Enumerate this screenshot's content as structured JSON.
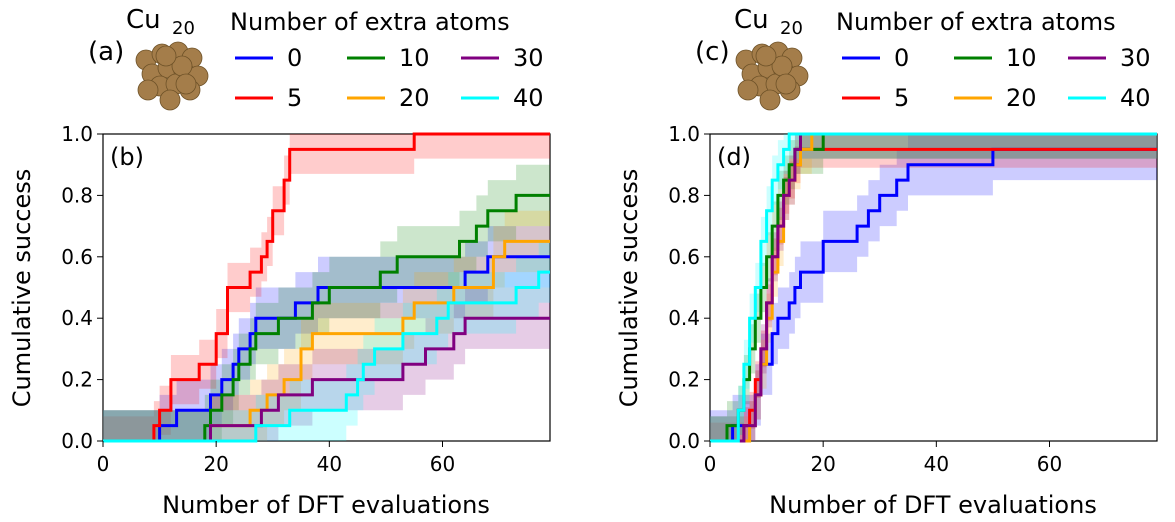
{
  "chart_data": [
    {
      "panel": "(a)",
      "type": "image",
      "cluster_label": "Cu",
      "cluster_subscript": "20",
      "color": "#a47d4a"
    },
    {
      "panel": "(b)",
      "type": "line",
      "step": true,
      "xlabel": "Number of DFT evaluations",
      "ylabel": "Cumulative success",
      "xlim": [
        0,
        79
      ],
      "ylim": [
        0,
        1.0
      ],
      "xticks": [
        "0",
        "20",
        "40",
        "60"
      ],
      "yticks": [
        "0.0",
        "0.2",
        "0.4",
        "0.6",
        "0.8",
        "1.0"
      ],
      "legend_title": "Number of extra atoms",
      "legend_location": "top",
      "series": [
        {
          "name": "0",
          "color": "#0000ff",
          "x": [
            0,
            10,
            13,
            17,
            19,
            21,
            23,
            24,
            26,
            27,
            31,
            34,
            38,
            40,
            43,
            48,
            53,
            62,
            64,
            68,
            79
          ],
          "y": [
            0,
            0.05,
            0.1,
            0.1,
            0.15,
            0.2,
            0.25,
            0.3,
            0.35,
            0.4,
            0.4,
            0.45,
            0.5,
            0.5,
            0.5,
            0.5,
            0.5,
            0.5,
            0.55,
            0.6,
            0.6
          ],
          "band": 0.1
        },
        {
          "name": "5",
          "color": "#ff0000",
          "x": [
            0,
            9,
            10,
            12,
            17,
            20,
            22,
            26,
            28,
            29,
            30,
            32,
            33,
            35,
            40,
            55,
            79
          ],
          "y": [
            0,
            0.05,
            0.1,
            0.2,
            0.25,
            0.35,
            0.5,
            0.55,
            0.6,
            0.65,
            0.75,
            0.85,
            0.95,
            0.95,
            0.95,
            1.0,
            1.0
          ],
          "band": 0.08
        },
        {
          "name": "10",
          "color": "#008000",
          "x": [
            0,
            18,
            19,
            21,
            23,
            24,
            26,
            27,
            31,
            35,
            37,
            40,
            43,
            44,
            49,
            52,
            56,
            59,
            62,
            63,
            66,
            68,
            70,
            73,
            75,
            79
          ],
          "y": [
            0,
            0.05,
            0.1,
            0.15,
            0.2,
            0.25,
            0.3,
            0.35,
            0.4,
            0.4,
            0.45,
            0.5,
            0.5,
            0.5,
            0.55,
            0.6,
            0.6,
            0.6,
            0.6,
            0.65,
            0.7,
            0.75,
            0.75,
            0.8,
            0.8,
            0.8
          ],
          "band": 0.1
        },
        {
          "name": "20",
          "color": "#ffa500",
          "x": [
            0,
            19,
            20,
            23,
            26,
            29,
            32,
            35,
            37,
            40,
            42,
            47,
            50,
            53,
            55,
            62,
            69,
            71,
            76,
            79
          ],
          "y": [
            0,
            0.05,
            0.05,
            0.05,
            0.1,
            0.15,
            0.2,
            0.3,
            0.35,
            0.35,
            0.35,
            0.35,
            0.35,
            0.4,
            0.45,
            0.5,
            0.6,
            0.65,
            0.65,
            0.65
          ],
          "band": 0.1
        },
        {
          "name": "30",
          "color": "#800080",
          "x": [
            0,
            19,
            28,
            31,
            37,
            41,
            45,
            47,
            49,
            53,
            57,
            62,
            64,
            79
          ],
          "y": [
            0,
            0.05,
            0.1,
            0.15,
            0.2,
            0.2,
            0.2,
            0.2,
            0.2,
            0.25,
            0.3,
            0.35,
            0.4,
            0.4
          ],
          "band": 0.1
        },
        {
          "name": "40",
          "color": "#00ffff",
          "x": [
            0,
            27,
            30,
            33,
            36,
            40,
            43,
            45,
            46,
            48,
            53,
            58,
            59,
            61,
            64,
            66,
            69,
            71,
            73,
            77,
            79
          ],
          "y": [
            0,
            0.05,
            0.05,
            0.1,
            0.1,
            0.1,
            0.15,
            0.2,
            0.25,
            0.3,
            0.35,
            0.35,
            0.4,
            0.45,
            0.45,
            0.45,
            0.45,
            0.45,
            0.5,
            0.55,
            0.55
          ],
          "band": 0.1
        }
      ]
    },
    {
      "panel": "(c)",
      "type": "image",
      "cluster_label": "Cu",
      "cluster_subscript": "20",
      "color": "#a47d4a"
    },
    {
      "panel": "(d)",
      "type": "line",
      "step": true,
      "xlabel": "Number of DFT evaluations",
      "ylabel": "Cumulative success",
      "xlim": [
        0,
        79
      ],
      "ylim": [
        0,
        1.0
      ],
      "xticks": [
        "0",
        "20",
        "40",
        "60"
      ],
      "yticks": [
        "0.0",
        "0.2",
        "0.4",
        "0.6",
        "0.8",
        "1.0"
      ],
      "legend_title": "Number of extra atoms",
      "legend_location": "top",
      "series": [
        {
          "name": "0",
          "color": "#0000ff",
          "x": [
            0,
            4,
            8,
            9,
            11,
            12,
            14,
            15,
            16,
            20,
            26,
            28,
            30,
            33,
            35,
            50,
            79
          ],
          "y": [
            0,
            0.05,
            0.15,
            0.25,
            0.35,
            0.4,
            0.45,
            0.5,
            0.55,
            0.65,
            0.7,
            0.75,
            0.8,
            0.85,
            0.9,
            0.95,
            0.95
          ],
          "band": 0.1
        },
        {
          "name": "5",
          "color": "#ff0000",
          "x": [
            0,
            6,
            7,
            8,
            9,
            10,
            11,
            12,
            13,
            14,
            15,
            16,
            17,
            79
          ],
          "y": [
            0,
            0.05,
            0.1,
            0.2,
            0.3,
            0.45,
            0.6,
            0.7,
            0.8,
            0.85,
            0.9,
            0.95,
            0.95,
            0.95
          ],
          "band": 0.06
        },
        {
          "name": "10",
          "color": "#008000",
          "x": [
            0,
            3,
            5,
            6,
            7,
            8,
            9,
            10,
            11,
            12,
            13,
            14,
            15,
            17,
            20,
            79
          ],
          "y": [
            0,
            0.05,
            0.1,
            0.2,
            0.3,
            0.4,
            0.5,
            0.6,
            0.7,
            0.8,
            0.85,
            0.9,
            0.95,
            0.95,
            1.0,
            1.0
          ],
          "band": 0.08
        },
        {
          "name": "20",
          "color": "#ffa500",
          "x": [
            0,
            7,
            8,
            9,
            10,
            11,
            12,
            13,
            14,
            15,
            16,
            18,
            79
          ],
          "y": [
            0,
            0.05,
            0.15,
            0.25,
            0.4,
            0.55,
            0.65,
            0.8,
            0.85,
            0.9,
            0.95,
            1.0,
            1.0
          ],
          "band": 0.08
        },
        {
          "name": "30",
          "color": "#800080",
          "x": [
            0,
            6,
            8,
            9,
            10,
            11,
            12,
            13,
            14,
            15,
            16,
            79
          ],
          "y": [
            0,
            0.05,
            0.15,
            0.3,
            0.45,
            0.6,
            0.7,
            0.8,
            0.85,
            0.95,
            1.0,
            1.0
          ],
          "band": 0.08
        },
        {
          "name": "40",
          "color": "#00ffff",
          "x": [
            0,
            5,
            6,
            7,
            8,
            9,
            10,
            11,
            12,
            13,
            14,
            15,
            79
          ],
          "y": [
            0,
            0.1,
            0.25,
            0.4,
            0.5,
            0.65,
            0.75,
            0.85,
            0.9,
            0.95,
            1.0,
            1.0,
            1.0
          ],
          "band": 0.08
        }
      ]
    }
  ]
}
